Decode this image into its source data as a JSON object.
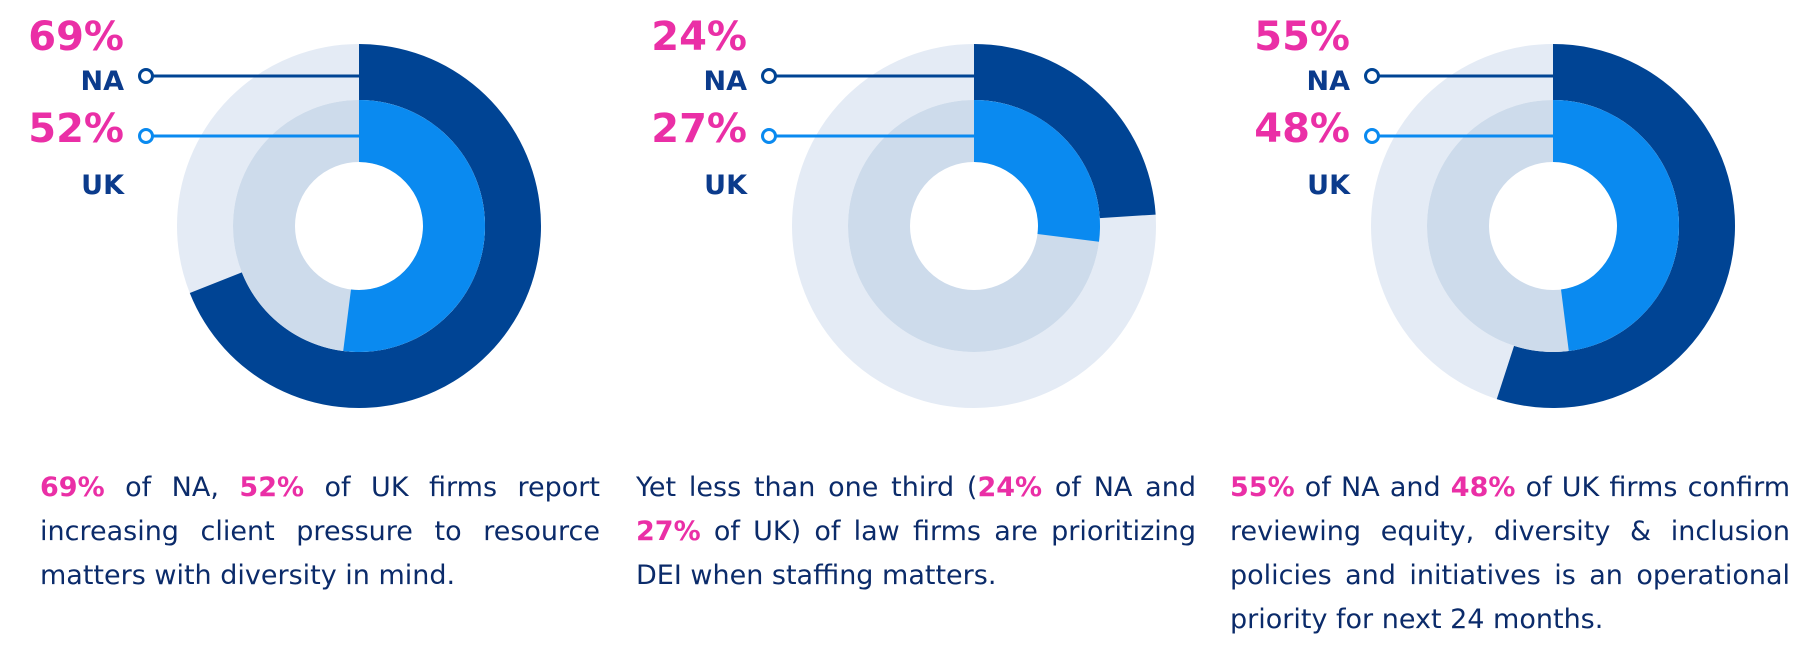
{
  "colors": {
    "na_fill": "#004494",
    "na_track": "#e4ebf5",
    "uk_fill": "#0a8af0",
    "uk_track": "#cddbeb",
    "pct_text": "#ea2fa6",
    "region_text": "#0b3b8c",
    "body_text": "#0b2b6a"
  },
  "chart_data": [
    {
      "type": "donut",
      "series": [
        {
          "name": "NA",
          "value": 69
        },
        {
          "name": "UK",
          "value": 52
        }
      ],
      "labels": [
        {
          "pct": "69%",
          "region": "NA"
        },
        {
          "pct": "52%",
          "region": "UK"
        }
      ],
      "caption": [
        {
          "text": "69%",
          "highlight": true
        },
        {
          "text": " of NA, ",
          "highlight": false
        },
        {
          "text": "52%",
          "highlight": true
        },
        {
          "text": " of UK firms report increasing client pressure to resource matters with diversity in mind.",
          "highlight": false
        }
      ]
    },
    {
      "type": "donut",
      "series": [
        {
          "name": "NA",
          "value": 24
        },
        {
          "name": "UK",
          "value": 27
        }
      ],
      "labels": [
        {
          "pct": "24%",
          "region": "NA"
        },
        {
          "pct": "27%",
          "region": "UK"
        }
      ],
      "caption": [
        {
          "text": "Yet less than one third (",
          "highlight": false
        },
        {
          "text": "24%",
          "highlight": true
        },
        {
          "text": " of NA and ",
          "highlight": false
        },
        {
          "text": "27%",
          "highlight": true
        },
        {
          "text": " of UK) of law firms are prioritizing DEI when staffing matters.",
          "highlight": false
        }
      ]
    },
    {
      "type": "donut",
      "series": [
        {
          "name": "NA",
          "value": 55
        },
        {
          "name": "UK",
          "value": 48
        }
      ],
      "labels": [
        {
          "pct": "55%",
          "region": "NA"
        },
        {
          "pct": "48%",
          "region": "UK"
        }
      ],
      "caption": [
        {
          "text": "55%",
          "highlight": true
        },
        {
          "text": " of NA and ",
          "highlight": false
        },
        {
          "text": "48%",
          "highlight": true
        },
        {
          "text": " of UK firms confirm reviewing equity, diversity & inclusion policies and initiatives is an operational priority for next 24 months.",
          "highlight": false
        }
      ]
    }
  ]
}
